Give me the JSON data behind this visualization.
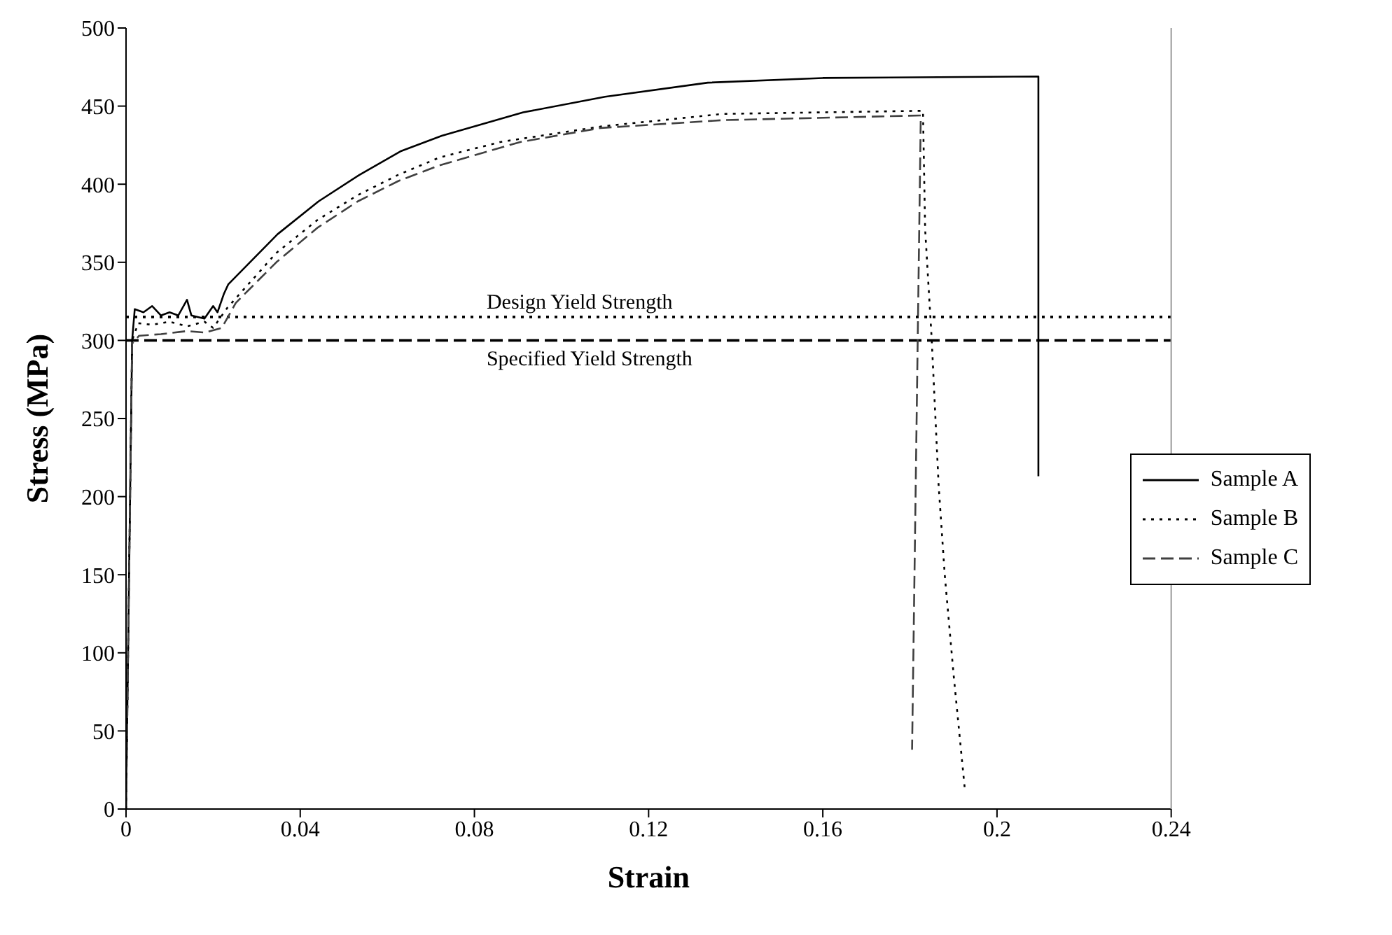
{
  "chart_data": {
    "type": "line",
    "xlabel": "Strain",
    "ylabel": "Stress (MPa)",
    "xlim": [
      0,
      0.24
    ],
    "xticks": [
      0,
      0.04,
      0.08,
      0.12,
      0.16,
      0.2,
      0.24
    ],
    "ylim": [
      0,
      500
    ],
    "yticks": [
      0,
      50,
      100,
      150,
      200,
      250,
      300,
      350,
      400,
      450,
      500
    ],
    "legend": "bottom right",
    "marker": "none",
    "series": [
      {
        "name": "Sample A",
        "color": "#000000",
        "line_style": "solid",
        "x": [
          0,
          0.0014,
          0.002,
          0.004,
          0.006,
          0.008,
          0.01,
          0.012,
          0.014,
          0.015,
          0.018,
          0.02,
          0.021,
          0.0225,
          0.0235,
          0.0348,
          0.0442,
          0.0536,
          0.063,
          0.0725,
          0.0912,
          0.11,
          0.1336,
          0.16,
          0.2095,
          0.2095
        ],
        "values": [
          0,
          300,
          320,
          318,
          322,
          316,
          318,
          316,
          326,
          316,
          314,
          322,
          318,
          330,
          336,
          368,
          389,
          406,
          421,
          431,
          446,
          456,
          465,
          468,
          469,
          213
        ]
      },
      {
        "name": "Sample B",
        "color": "#000000",
        "line_style": "dotted",
        "x": [
          0,
          0.0014,
          0.0028,
          0.006,
          0.01,
          0.014,
          0.018,
          0.02,
          0.0233,
          0.0345,
          0.0439,
          0.0532,
          0.0625,
          0.0719,
          0.0859,
          0.1092,
          0.137,
          0.183,
          0.1835,
          0.185,
          0.1866,
          0.188,
          0.19,
          0.1926
        ],
        "values": [
          0,
          300,
          311,
          310,
          312,
          309,
          312,
          308,
          321,
          356,
          377,
          393,
          406,
          417,
          427,
          437,
          445,
          447,
          371,
          301,
          207,
          150,
          87,
          13
        ]
      },
      {
        "name": "Sample C",
        "color": "#404040",
        "line_style": "dashed",
        "x": [
          0,
          0.0014,
          0.003,
          0.008,
          0.014,
          0.018,
          0.022,
          0.0252,
          0.0345,
          0.0439,
          0.0532,
          0.0625,
          0.0719,
          0.0905,
          0.109,
          0.137,
          0.1825,
          0.1805
        ],
        "values": [
          0,
          298,
          303,
          304,
          306,
          305,
          308,
          324,
          350,
          372,
          389,
          402,
          412,
          427,
          436,
          441,
          444,
          38
        ]
      }
    ],
    "ref_lines": [
      {
        "axis": "y",
        "value": 315,
        "label": "Design Yield Strength",
        "line_style": "dotted",
        "color": "#000000"
      },
      {
        "axis": "y",
        "value": 300,
        "label": "Specified Yield Strength",
        "line_style": "dashed",
        "color": "#000000"
      }
    ]
  }
}
